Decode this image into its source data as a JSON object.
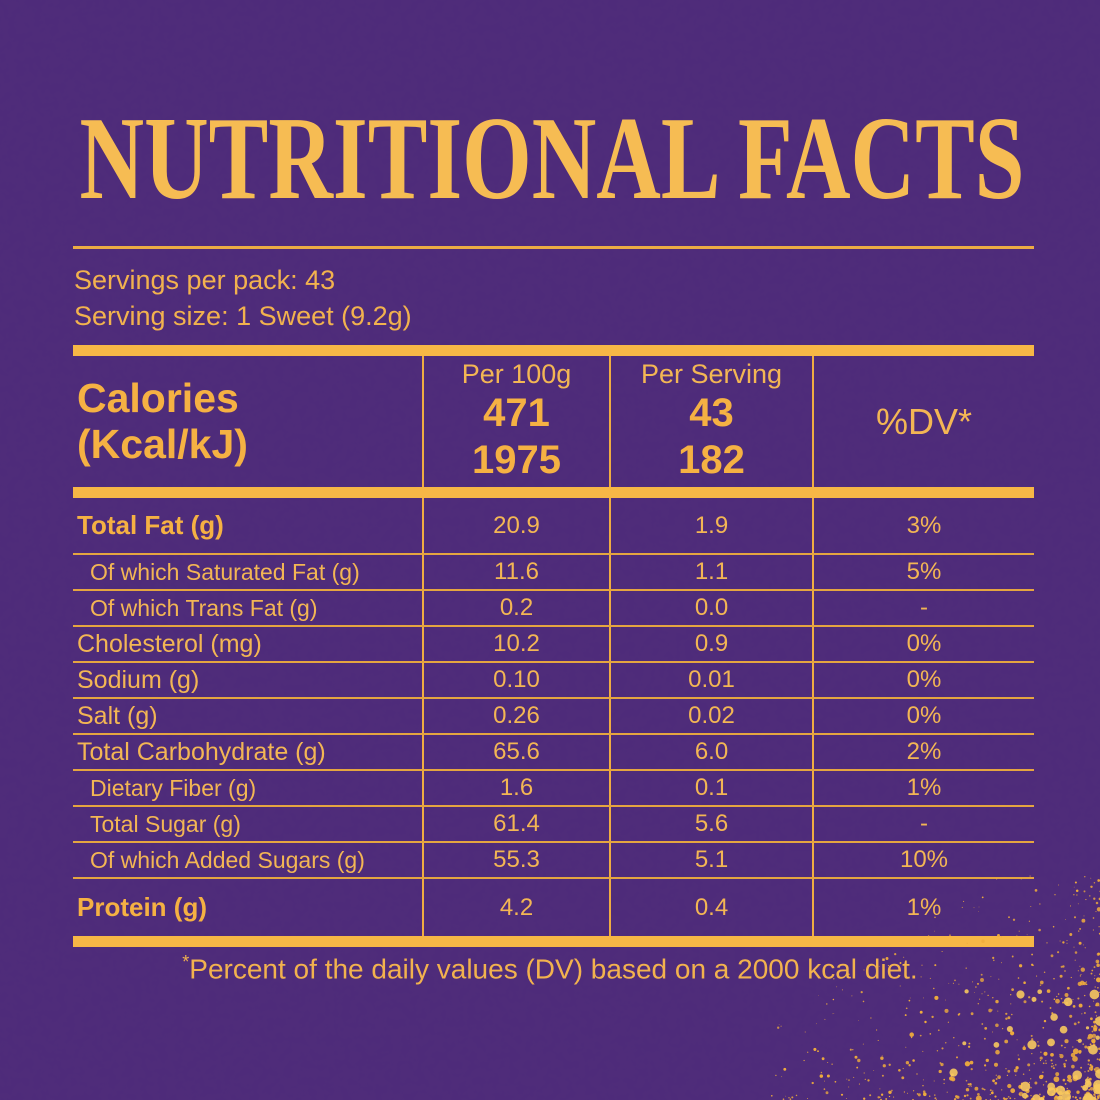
{
  "title": "NUTRITIONAL FACTS",
  "colors": {
    "background": "#4E2B7A",
    "gold_text": "#F3B654",
    "gold_bar": "#F7B746",
    "gold_splatter": "#F0AC3C"
  },
  "serving_info": {
    "servings_per_pack": "Servings per pack: 43",
    "serving_size": "Serving size: 1 Sweet (9.2g)"
  },
  "table": {
    "header": {
      "label_line1": "Calories",
      "label_line2": "(Kcal/kJ)",
      "col_per_100g": "Per 100g",
      "col_per_serving": "Per Serving",
      "per_100g_kcal": "471",
      "per_100g_kj": "1975",
      "per_serving_kcal": "43",
      "per_serving_kj": "182",
      "dv_label": "%DV*"
    },
    "rows": [
      {
        "label": "Total Fat (g)",
        "per100g": "20.9",
        "perServing": "1.9",
        "dv": "3%",
        "style": "bold"
      },
      {
        "label": "Of which Saturated Fat (g)",
        "per100g": "11.6",
        "perServing": "1.1",
        "dv": "5%",
        "style": "sub"
      },
      {
        "label": "Of which Trans Fat (g)",
        "per100g": "0.2",
        "perServing": "0.0",
        "dv": "-",
        "style": "sub"
      },
      {
        "label": "Cholesterol (mg)",
        "per100g": "10.2",
        "perServing": "0.9",
        "dv": "0%",
        "style": "normal"
      },
      {
        "label": "Sodium (g)",
        "per100g": "0.10",
        "perServing": "0.01",
        "dv": "0%",
        "style": "normal"
      },
      {
        "label": "Salt (g)",
        "per100g": "0.26",
        "perServing": "0.02",
        "dv": "0%",
        "style": "normal"
      },
      {
        "label": "Total Carbohydrate (g)",
        "per100g": "65.6",
        "perServing": "6.0",
        "dv": "2%",
        "style": "normal"
      },
      {
        "label": "Dietary Fiber (g)",
        "per100g": "1.6",
        "perServing": "0.1",
        "dv": "1%",
        "style": "sub"
      },
      {
        "label": "Total Sugar (g)",
        "per100g": "61.4",
        "perServing": "5.6",
        "dv": "-",
        "style": "sub"
      },
      {
        "label": "Of which Added Sugars (g)",
        "per100g": "55.3",
        "perServing": "5.1",
        "dv": "10%",
        "style": "sub"
      },
      {
        "label": "Protein (g)",
        "per100g": "4.2",
        "perServing": "0.4",
        "dv": "1%",
        "style": "bold-tall"
      }
    ]
  },
  "footnote": {
    "asterisk": "*",
    "text": "Percent of the daily values (DV) based on a 2000 kcal diet."
  }
}
